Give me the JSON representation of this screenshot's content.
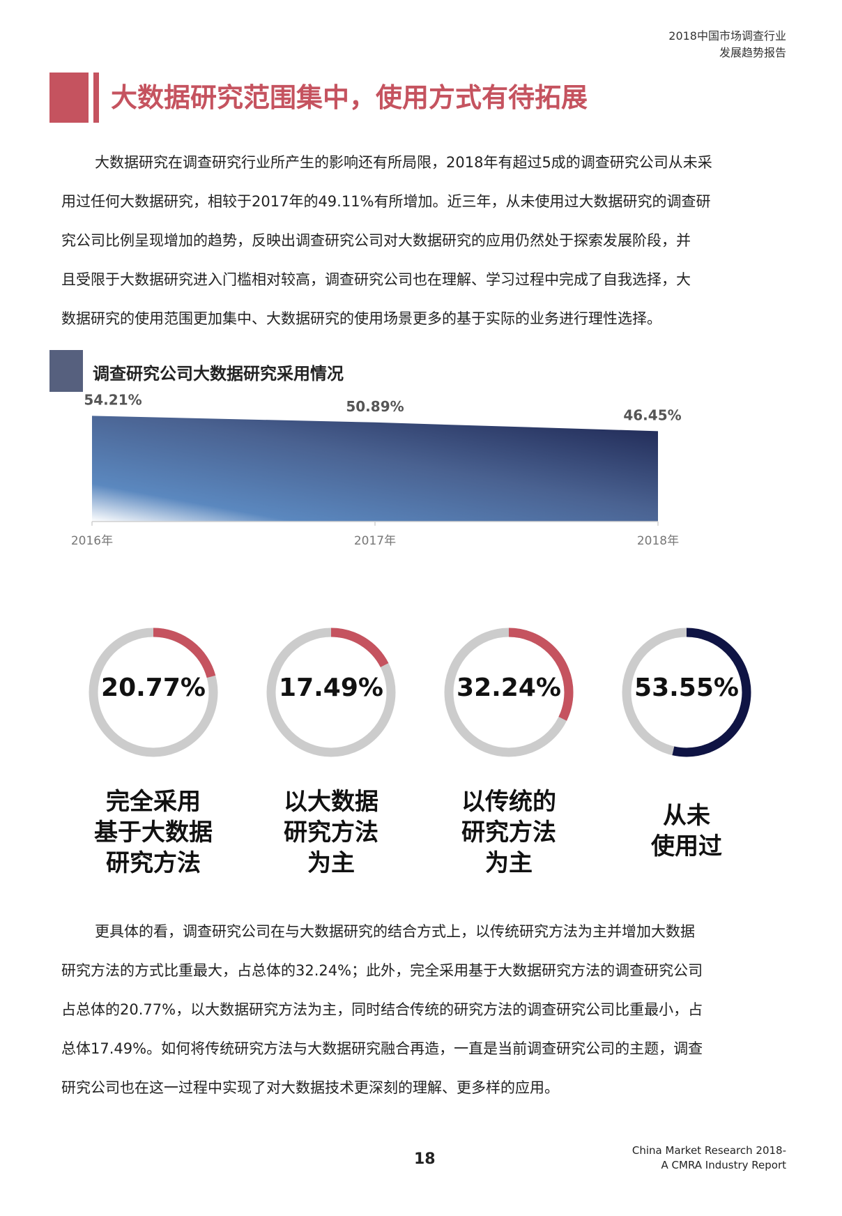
{
  "header": {
    "line1": "2018中国市场调查行业",
    "line2": "发展趋势报告"
  },
  "title": "大数据研究范围集中，使用方式有待拓展",
  "paragraph1": [
    "大数据研究在调查研究行业所产生的影响还有所局限，2018年有超过5成的调查研究公司从未采",
    "用过任何大数据研究，相较于2017年的49.11%有所增加。近三年，从未使用过大数据研究的调查研",
    "究公司比例呈现增加的趋势，反映出调查研究公司对大数据研究的应用仍然处于探索发展阶段，并",
    "且受限于大数据研究进入门槛相对较高，调查研究公司也在理解、学习过程中完成了自我选择，大",
    "数据研究的使用范围更加集中、大数据研究的使用场景更多的基于实际的业务进行理性选择。"
  ],
  "section_title": "调查研究公司大数据研究采用情况",
  "chart_data": [
    {
      "type": "area",
      "title": "调查研究公司大数据研究采用情况",
      "categories": [
        "2016年",
        "2017年",
        "2018年"
      ],
      "values": [
        54.21,
        50.89,
        46.45
      ],
      "value_labels": [
        "54.21%",
        "50.89%",
        "46.45%"
      ],
      "colors": {
        "dark": "#1c2450",
        "light": "#5b88bf",
        "fill_highlight": "#ffffff"
      }
    },
    {
      "type": "pie",
      "categories": [
        "完全采用基于大数据研究方法",
        "以大数据研究方法为主",
        "以传统的研究方法为主",
        "从未使用过"
      ],
      "values": [
        20.77,
        17.49,
        32.24,
        53.55
      ]
    }
  ],
  "donuts": [
    {
      "value": 20.77,
      "value_label": "20.77%",
      "color": "#c5535f",
      "label_lines": [
        "完全采用",
        "基于大数据",
        "研究方法"
      ]
    },
    {
      "value": 17.49,
      "value_label": "17.49%",
      "color": "#c5535f",
      "label_lines": [
        "以大数据",
        "研究方法",
        "为主"
      ]
    },
    {
      "value": 32.24,
      "value_label": "32.24%",
      "color": "#c5535f",
      "label_lines": [
        "以传统的",
        "研究方法",
        "为主"
      ]
    },
    {
      "value": 53.55,
      "value_label": "53.55%",
      "color": "#0f1444",
      "label_lines": [
        "从未",
        "使用过"
      ]
    }
  ],
  "donut_track_color": "#cccccc",
  "paragraph2": [
    "更具体的看，调查研究公司在与大数据研究的结合方式上，以传统研究方法为主并增加大数据",
    "研究方法的方式比重最大，占总体的32.24%；此外，完全采用基于大数据研究方法的调查研究公司",
    "占总体的20.77%，以大数据研究方法为主，同时结合传统的研究方法的调查研究公司比重最小，占",
    "总体17.49%。如何将传统研究方法与大数据研究融合再造，一直是当前调查研究公司的主题，调查",
    "研究公司也在这一过程中实现了对大数据技术更深刻的理解、更多样的应用。"
  ],
  "page_number": "18",
  "footer": {
    "line1": "China Market Research 2018-",
    "line2": "A CMRA Industry Report"
  }
}
